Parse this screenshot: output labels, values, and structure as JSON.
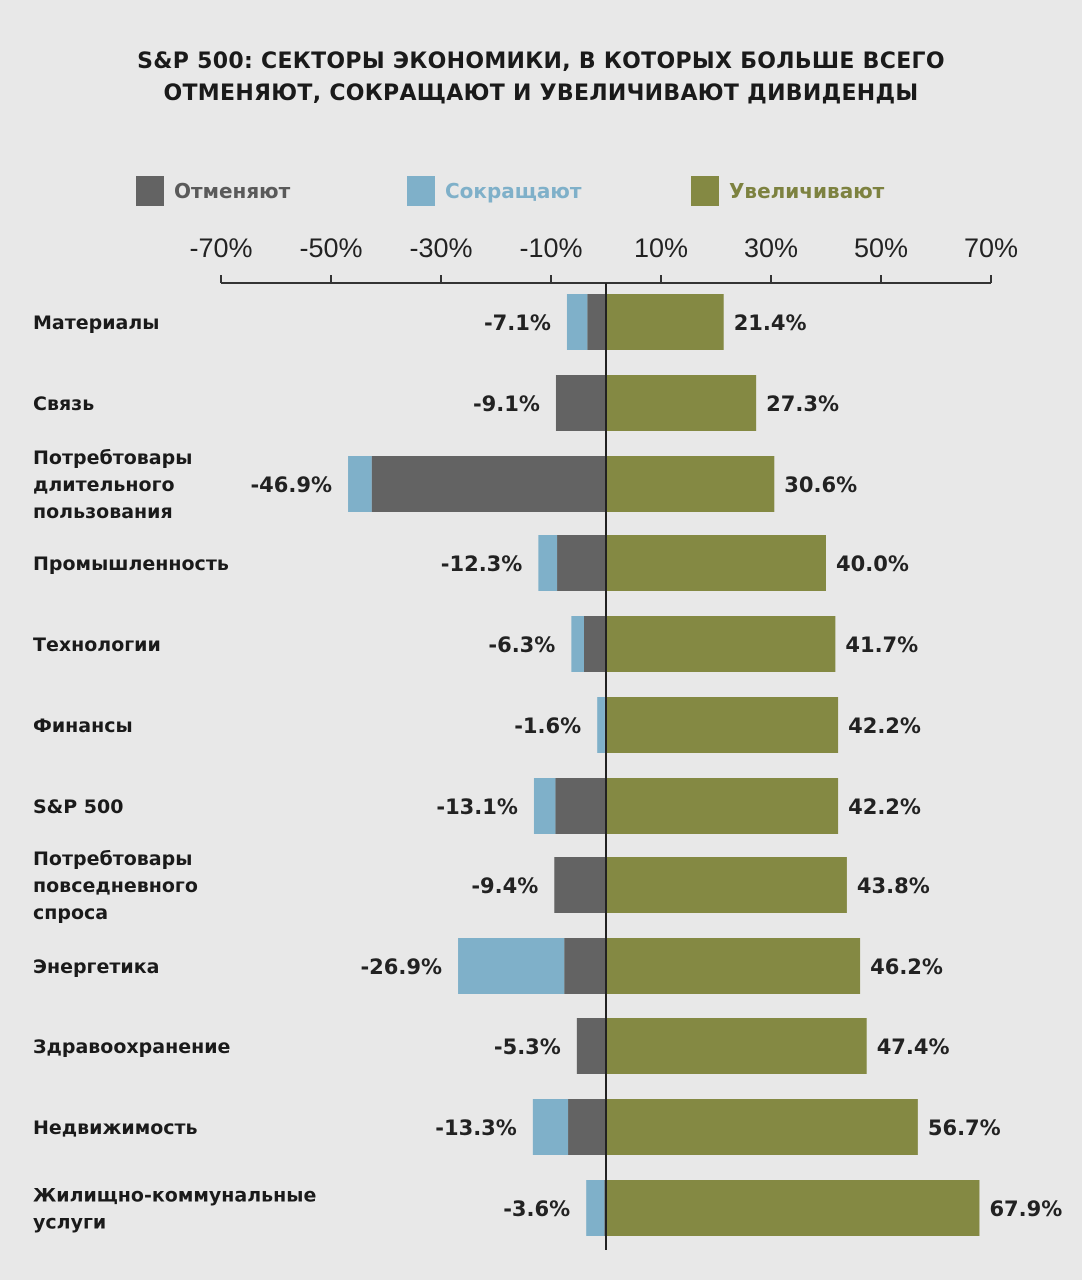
{
  "title_lines": [
    "S&P 500: СЕКТОРЫ ЭКОНОМИКИ, В КОТОРЫХ БОЛЬШЕ ВСЕГО",
    "ОТМЕНЯЮТ, СОКРАЩАЮТ И УВЕЛИЧИВАЮТ  ДИВИДЕНДЫ"
  ],
  "legend": [
    {
      "label": "Отменяют",
      "color": "#636363",
      "text_color": "#5a5a5a"
    },
    {
      "label": "Сокращают",
      "color": "#7fb0c9",
      "text_color": "#7fb0c9"
    },
    {
      "label": "Увеличивают",
      "color": "#848943",
      "text_color": "#7d8240"
    }
  ],
  "chart_data": {
    "type": "bar",
    "orientation": "horizontal-diverging",
    "xlim": [
      -70,
      70
    ],
    "x_ticks": [
      "-70%",
      "-50%",
      "-30%",
      "-10%",
      "10%",
      "30%",
      "50%",
      "70%"
    ],
    "x_tick_values": [
      -70,
      -50,
      -30,
      -10,
      10,
      30,
      50,
      70
    ],
    "categories": [
      "Материалы",
      "Связь",
      "Потребтовары длительного пользования",
      "Промышленность",
      "Технологии",
      "Финансы",
      "S&P 500",
      "Потребтовары повседневного спроса",
      "Энергетика",
      "Здравоохранение",
      "Недвижимость",
      "Жилищно-коммунальные услуги"
    ],
    "category_lines": [
      [
        "Материалы"
      ],
      [
        "Связь"
      ],
      [
        "Потребтовары",
        "длительного",
        "пользования"
      ],
      [
        "Промышленность"
      ],
      [
        "Технологии"
      ],
      [
        "Финансы"
      ],
      [
        "S&P 500"
      ],
      [
        "Потребтовары",
        "повседневного",
        "спроса"
      ],
      [
        "Энергетика"
      ],
      [
        "Здравоохранение"
      ],
      [
        "Недвижимость"
      ],
      [
        "Жилищно-коммунальные",
        "услуги"
      ]
    ],
    "series": [
      {
        "name": "Отменяют",
        "values": [
          -3.4,
          -9.1,
          -42.6,
          -8.9,
          -4.0,
          -0.2,
          -9.2,
          -9.4,
          -7.6,
          -5.3,
          -6.9,
          -0.3
        ]
      },
      {
        "name": "Сокращают",
        "values": [
          -3.7,
          0,
          -4.3,
          -3.4,
          -2.3,
          -1.4,
          -3.9,
          0,
          -19.3,
          0,
          -6.4,
          -3.3
        ]
      },
      {
        "name": "Увеличивают",
        "values": [
          21.4,
          27.3,
          30.6,
          40.0,
          41.7,
          42.2,
          42.2,
          43.8,
          46.2,
          47.4,
          56.7,
          67.9
        ]
      }
    ],
    "negative_labels": [
      "-7.1%",
      "-9.1%",
      "-46.9%",
      "-12.3%",
      "-6.3%",
      "-1.6%",
      "-13.1%",
      "-9.4%",
      "-26.9%",
      "-5.3%",
      "-13.3%",
      "-3.6%"
    ],
    "positive_labels": [
      "21.4%",
      "27.3%",
      "30.6%",
      "40.0%",
      "41.7%",
      "42.2%",
      "42.2%",
      "43.8%",
      "46.2%",
      "47.4%",
      "56.7%",
      "67.9%"
    ]
  }
}
